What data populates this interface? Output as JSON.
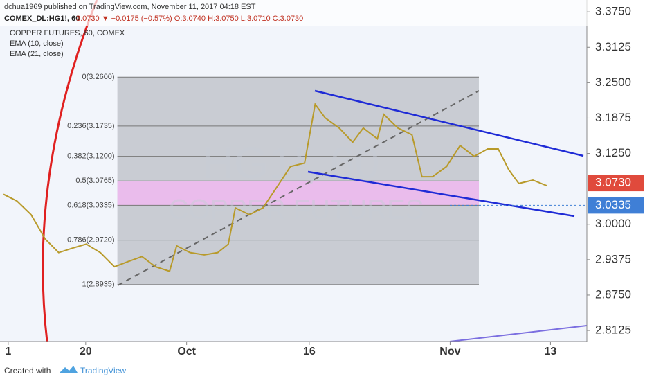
{
  "chart_data": {
    "type": "line",
    "header": "dchua1969 published on TradingView.com, November 11, 2017 04:18 EST",
    "symbol": "COMEX_DL:HG1!, 60",
    "quote": "3.0730 ▼ −0.0175 (−0.57%) O:3.0740 H:3.0750 L:3.0710 C:3.0730",
    "legend_title": "COPPER FUTURES, 60, COMEX",
    "indicators": [
      "EMA (10, close)",
      "EMA (21, close)"
    ],
    "watermark": [
      "HG1!, 60",
      "COPPER FUTURES"
    ],
    "footer": [
      "Created with",
      "TradingView"
    ],
    "color": "#b89a2a",
    "x": [
      0.6,
      2.9,
      5.3,
      7.7,
      10.0,
      12.4,
      14.7,
      17.1,
      19.5,
      21.8,
      24.2,
      26.5,
      28.9,
      30.1,
      32.4,
      34.8,
      37.1,
      38.9,
      40.1,
      42.5,
      44.8,
      47.2,
      49.5,
      51.9,
      53.7,
      55.4,
      57.8,
      60.1,
      61.9,
      64.3,
      65.4,
      67.8,
      70.2,
      71.9,
      73.7,
      76.1,
      78.4,
      80.8,
      83.1,
      84.9,
      86.7,
      88.4,
      90.8,
      93.2
    ],
    "values": [
      3.053,
      3.041,
      3.017,
      2.974,
      2.95,
      2.958,
      2.965,
      2.95,
      2.925,
      2.934,
      2.943,
      2.925,
      2.917,
      2.962,
      2.95,
      2.946,
      2.95,
      2.965,
      3.029,
      3.017,
      3.029,
      3.066,
      3.102,
      3.108,
      3.212,
      3.188,
      3.17,
      3.145,
      3.17,
      3.151,
      3.194,
      3.17,
      3.158,
      3.084,
      3.084,
      3.102,
      3.139,
      3.12,
      3.133,
      3.133,
      3.096,
      3.072,
      3.078,
      3.068
    ],
    "xlim": [
      0,
      100
    ],
    "xticks": [
      {
        "value": 1.4,
        "label": "1"
      },
      {
        "value": 14.6,
        "label": "20"
      },
      {
        "value": 31.8,
        "label": "Oct"
      },
      {
        "value": 52.7,
        "label": "16"
      },
      {
        "value": 76.7,
        "label": "Nov"
      },
      {
        "value": 93.8,
        "label": "13"
      }
    ],
    "ylim": [
      2.793,
      3.396
    ],
    "yticks": [
      {
        "value": 3.375,
        "label": "3.3750"
      },
      {
        "value": 3.3125,
        "label": "3.3125"
      },
      {
        "value": 3.25,
        "label": "3.2500"
      },
      {
        "value": 3.1875,
        "label": "3.1875"
      },
      {
        "value": 3.125,
        "label": "3.1250"
      },
      {
        "value": 3.0,
        "label": "3.0000"
      },
      {
        "value": 2.9375,
        "label": "2.9375"
      },
      {
        "value": 2.875,
        "label": "2.8750"
      },
      {
        "value": 2.8125,
        "label": "2.8125"
      }
    ],
    "fib_range": [
      20.0,
      81.6
    ],
    "fib_levels": [
      {
        "value": 3.26,
        "label": "0(3.2600)"
      },
      {
        "value": 3.1735,
        "label": "0.236(3.1735)"
      },
      {
        "value": 3.12,
        "label": "0.382(3.1200)"
      },
      {
        "value": 3.0765,
        "label": "0.5(3.0765)"
      },
      {
        "value": 3.0335,
        "label": "0.618(3.0335)"
      },
      {
        "value": 2.972,
        "label": "0.786(2.9720)"
      },
      {
        "value": 2.8935,
        "label": "1(2.8935)"
      }
    ],
    "price_labels": [
      {
        "value": 3.073,
        "label": "3.0730",
        "color": "#e04a3c"
      },
      {
        "value": 3.0335,
        "label": "3.0335",
        "color": "#3f7fd6"
      }
    ]
  }
}
